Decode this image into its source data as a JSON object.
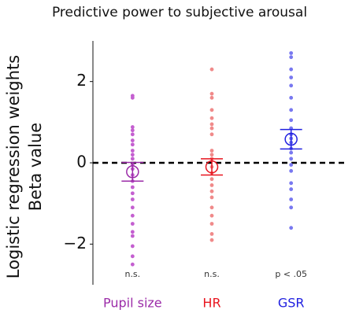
{
  "chart_data": {
    "type": "strip",
    "title": "Predictive power to subjective arousal",
    "y_label": [
      "Logistic regression weights",
      "Beta value"
    ],
    "ylim": [
      -3,
      3
    ],
    "yticks": [
      {
        "value": -2,
        "label": "−2"
      },
      0,
      2
    ],
    "reference_line": 0,
    "categories": [
      "Pupil size",
      "HR",
      "GSR"
    ],
    "series": [
      {
        "name": "Pupil size",
        "color": "#9b2ba8",
        "point_color": "#c45fd0",
        "values": [
          1.65,
          1.6,
          0.88,
          0.8,
          0.7,
          0.55,
          0.45,
          0.3,
          0.2,
          0.1,
          -0.05,
          -0.15,
          -0.3,
          -0.45,
          -0.6,
          -0.75,
          -0.9,
          -1.1,
          -1.3,
          -1.5,
          -1.7,
          -1.8,
          -2.05,
          -2.3,
          -2.5
        ],
        "mean": -0.22,
        "error": 0.23,
        "annotation": "n.s."
      },
      {
        "name": "HR",
        "color": "#e8141e",
        "point_color": "#f08a8a",
        "values": [
          2.3,
          1.7,
          1.6,
          1.3,
          1.1,
          0.95,
          0.85,
          0.7,
          0.3,
          0.2,
          0.1,
          -0.1,
          -0.25,
          -0.4,
          -0.55,
          -0.7,
          -0.85,
          -1.1,
          -1.3,
          -1.5,
          -1.75,
          -1.9
        ],
        "mean": -0.1,
        "error": 0.2,
        "annotation": "n.s."
      },
      {
        "name": "GSR",
        "color": "#2020e0",
        "point_color": "#7878f0",
        "values": [
          2.7,
          2.6,
          2.3,
          2.1,
          1.9,
          1.6,
          1.3,
          1.05,
          0.85,
          0.7,
          0.6,
          0.5,
          0.35,
          0.25,
          0.1,
          -0.05,
          -0.2,
          -0.5,
          -0.65,
          -0.9,
          -1.1,
          -1.6
        ],
        "mean": 0.58,
        "error": 0.24,
        "annotation": "p < .05"
      }
    ]
  }
}
